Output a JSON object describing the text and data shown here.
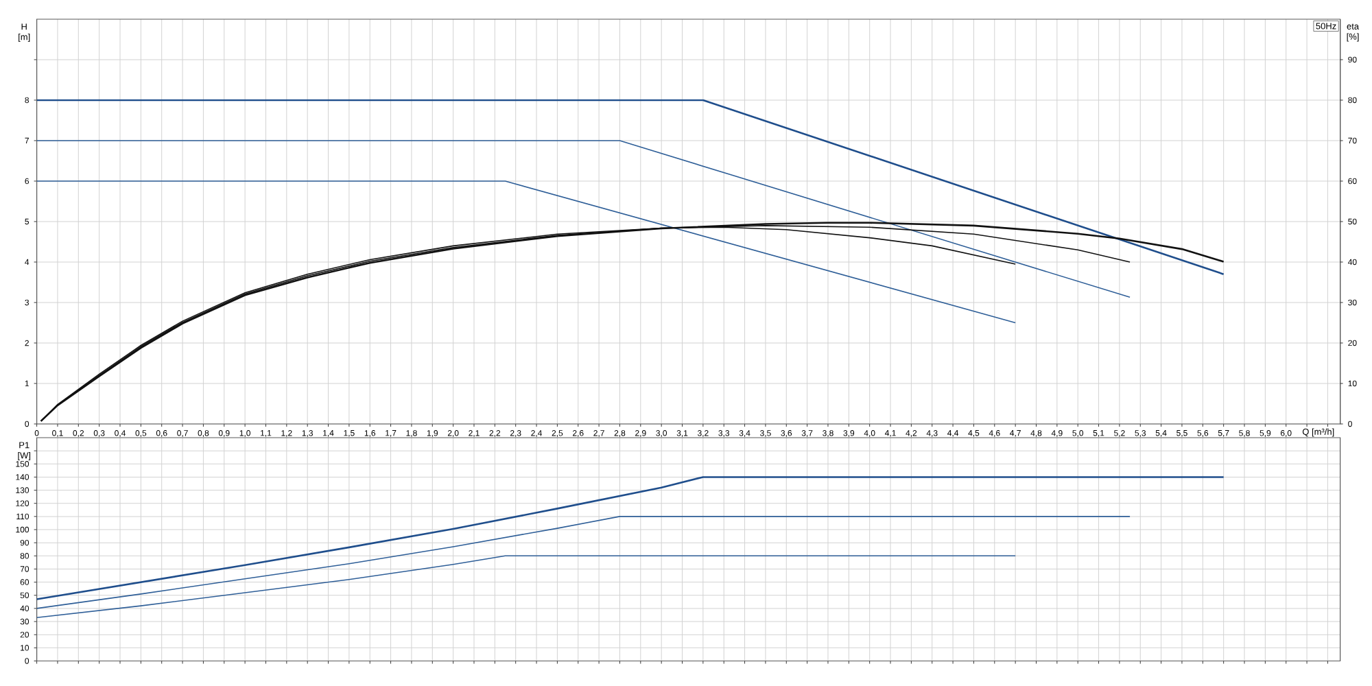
{
  "chart_data": [
    {
      "type": "line",
      "xlabel": "Q [m³/h]",
      "ylabel": "H [m]",
      "y2label": "eta [%]",
      "annotations": [
        "50Hz"
      ],
      "grid": true,
      "xlim": [
        0,
        6.26
      ],
      "xticks": [
        0,
        {
          "value": 0.1,
          "label": "0,1"
        },
        {
          "value": 0.2,
          "label": "0,2"
        },
        {
          "value": 0.3,
          "label": "0,3"
        },
        {
          "value": 0.4,
          "label": "0,4"
        },
        {
          "value": 0.5,
          "label": "0,5"
        },
        {
          "value": 0.6,
          "label": "0,6"
        },
        {
          "value": 0.7,
          "label": "0,7"
        },
        {
          "value": 0.8,
          "label": "0,8"
        },
        {
          "value": 0.9,
          "label": "0,9"
        },
        {
          "value": 1.0,
          "label": "1,0"
        },
        {
          "value": 1.1,
          "label": "1,1"
        },
        {
          "value": 1.2,
          "label": "1,2"
        },
        {
          "value": 1.3,
          "label": "1,3"
        },
        {
          "value": 1.4,
          "label": "1,4"
        },
        {
          "value": 1.5,
          "label": "1,5"
        },
        {
          "value": 1.6,
          "label": "1,6"
        },
        {
          "value": 1.7,
          "label": "1,7"
        },
        {
          "value": 1.8,
          "label": "1,8"
        },
        {
          "value": 1.9,
          "label": "1,9"
        },
        {
          "value": 2.0,
          "label": "2,0"
        },
        {
          "value": 2.1,
          "label": "2,1"
        },
        {
          "value": 2.2,
          "label": "2,2"
        },
        {
          "value": 2.3,
          "label": "2,3"
        },
        {
          "value": 2.4,
          "label": "2,4"
        },
        {
          "value": 2.5,
          "label": "2,5"
        },
        {
          "value": 2.6,
          "label": "2,6"
        },
        {
          "value": 2.7,
          "label": "2,7"
        },
        {
          "value": 2.8,
          "label": "2,8"
        },
        {
          "value": 2.9,
          "label": "2,9"
        },
        {
          "value": 3.0,
          "label": "3,0"
        },
        {
          "value": 3.1,
          "label": "3,1"
        },
        {
          "value": 3.2,
          "label": "3,2"
        },
        {
          "value": 3.3,
          "label": "3,3"
        },
        {
          "value": 3.4,
          "label": "3,4"
        },
        {
          "value": 3.5,
          "label": "3,5"
        },
        {
          "value": 3.6,
          "label": "3,6"
        },
        {
          "value": 3.7,
          "label": "3,7"
        },
        {
          "value": 3.8,
          "label": "3,8"
        },
        {
          "value": 3.9,
          "label": "3,9"
        },
        {
          "value": 4.0,
          "label": "4,0"
        },
        {
          "value": 4.1,
          "label": "4,1"
        },
        {
          "value": 4.2,
          "label": "4,2"
        },
        {
          "value": 4.3,
          "label": "4,3"
        },
        {
          "value": 4.4,
          "label": "4,4"
        },
        {
          "value": 4.5,
          "label": "4,5"
        },
        {
          "value": 4.6,
          "label": "4,6"
        },
        {
          "value": 4.7,
          "label": "4,7"
        },
        {
          "value": 4.8,
          "label": "4,8"
        },
        {
          "value": 4.9,
          "label": "4,9"
        },
        {
          "value": 5.0,
          "label": "5,0"
        },
        {
          "value": 5.1,
          "label": "5,1"
        },
        {
          "value": 5.2,
          "label": "5,2"
        },
        {
          "value": 5.3,
          "label": "5,3"
        },
        {
          "value": 5.4,
          "label": "5,4"
        },
        {
          "value": 5.5,
          "label": "5,5"
        },
        {
          "value": 5.6,
          "label": "5,6"
        },
        {
          "value": 5.7,
          "label": "5,7"
        },
        {
          "value": 5.8,
          "label": "5,8"
        },
        {
          "value": 5.9,
          "label": "5,9"
        },
        {
          "value": 6.0,
          "label": "6,0"
        },
        {
          "value": 6.1,
          "label": null
        },
        {
          "value": 6.2,
          "label": null
        }
      ],
      "ylim": [
        0,
        10
      ],
      "yticks": [
        0,
        1,
        2,
        3,
        4,
        5,
        6,
        7,
        8,
        {
          "value": 9,
          "label": null
        }
      ],
      "y2lim": [
        0,
        100
      ],
      "y2ticks": [
        0,
        10,
        20,
        30,
        40,
        50,
        60,
        70,
        80,
        90
      ],
      "series": [
        {
          "color": "#1f4e8c",
          "x": [
            0,
            3.2,
            5.7
          ],
          "values": [
            8,
            8,
            3.7
          ]
        },
        {
          "color": "#2f5f98",
          "x": [
            0,
            2.8,
            5.25
          ],
          "values": [
            7,
            7,
            3.13
          ]
        },
        {
          "color": "#2f5f98",
          "x": [
            0,
            2.25,
            4.7
          ],
          "values": [
            6,
            6,
            2.5
          ]
        },
        {
          "color": "#111111",
          "axis": "y2",
          "x": [
            0.02,
            0.1,
            0.3,
            0.5,
            0.7,
            1.0,
            1.3,
            1.6,
            2.0,
            2.5,
            3.0,
            3.5,
            3.8,
            4.0,
            4.5,
            5.0,
            5.2,
            5.5,
            5.7
          ],
          "values": [
            0.7,
            4.6,
            11.8,
            18.8,
            24.8,
            31.8,
            36.2,
            39.8,
            43.3,
            46.4,
            48.3,
            49.4,
            49.7,
            49.7,
            49.0,
            47.0,
            45.8,
            43.2,
            40.1
          ]
        },
        {
          "color": "#111111",
          "axis": "y2",
          "x": [
            0.02,
            0.1,
            0.3,
            0.5,
            0.7,
            1.0,
            1.3,
            1.6,
            2.0,
            2.5,
            3.0,
            3.5,
            4.0,
            4.5,
            5.0,
            5.25
          ],
          "values": [
            0.7,
            4.7,
            12.0,
            19.1,
            25.1,
            32.1,
            36.6,
            40.2,
            43.6,
            46.6,
            48.4,
            49.0,
            48.6,
            46.9,
            43.0,
            40.0
          ]
        },
        {
          "color": "#111111",
          "axis": "y2",
          "x": [
            0.02,
            0.1,
            0.3,
            0.5,
            0.7,
            1.0,
            1.3,
            1.6,
            2.0,
            2.5,
            3.0,
            3.3,
            3.6,
            4.0,
            4.3,
            4.7
          ],
          "values": [
            0.7,
            4.8,
            12.3,
            19.4,
            25.4,
            32.4,
            37.0,
            40.6,
            44.0,
            46.9,
            48.4,
            48.6,
            48.0,
            46.0,
            44.0,
            39.5
          ]
        }
      ]
    },
    {
      "type": "line",
      "ylabel": "P1 [W]",
      "grid": true,
      "tick_labels": "y",
      "xlim": [
        0,
        6.26
      ],
      "xticks": [
        0,
        0.1,
        0.2,
        0.3,
        0.4,
        0.5,
        0.6,
        0.7,
        0.8,
        0.9,
        1.0,
        1.1,
        1.2,
        1.3,
        1.4,
        1.5,
        1.6,
        1.7,
        1.8,
        1.9,
        2.0,
        2.1,
        2.2,
        2.3,
        2.4,
        2.5,
        2.6,
        2.7,
        2.8,
        2.9,
        3.0,
        3.1,
        3.2,
        3.3,
        3.4,
        3.5,
        3.6,
        3.7,
        3.8,
        3.9,
        4.0,
        4.1,
        4.2,
        4.3,
        4.4,
        4.5,
        4.6,
        4.7,
        4.8,
        4.9,
        5.0,
        5.1,
        5.2,
        5.3,
        5.4,
        5.5,
        5.6,
        5.7,
        5.8,
        5.9,
        6.0,
        6.1,
        6.2
      ],
      "ylim": [
        0,
        170
      ],
      "yticks": [
        0,
        10,
        20,
        30,
        40,
        50,
        60,
        70,
        80,
        90,
        100,
        110,
        120,
        130,
        140,
        150,
        {
          "value": 160,
          "label": null
        }
      ],
      "series": [
        {
          "color": "#1f4e8c",
          "x": [
            0,
            0.5,
            1.0,
            1.5,
            2.0,
            2.5,
            3.0,
            3.2,
            5.7
          ],
          "values": [
            47,
            60,
            73,
            86.5,
            100.5,
            116,
            132,
            140,
            140
          ]
        },
        {
          "color": "#2f5f98",
          "x": [
            0,
            0.5,
            1.0,
            1.5,
            2.0,
            2.5,
            2.8,
            5.25
          ],
          "values": [
            40,
            51,
            62.5,
            74,
            87,
            101,
            110,
            110
          ]
        },
        {
          "color": "#2f5f98",
          "x": [
            0,
            0.5,
            1.0,
            1.5,
            2.0,
            2.25,
            4.7
          ],
          "values": [
            33,
            42,
            52,
            62,
            73.5,
            80,
            80
          ]
        }
      ]
    }
  ]
}
